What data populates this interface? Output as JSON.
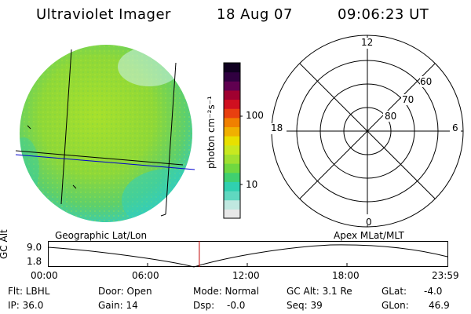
{
  "header": {
    "instrument": "Ultraviolet Imager",
    "date": "18 Aug 07",
    "time": "09:06:23 UT"
  },
  "colorbar": {
    "label": "photon cm⁻²s⁻¹",
    "ticks": [
      "100",
      "10"
    ],
    "scale": "log",
    "colors": [
      "#e8e8e8",
      "#c0e8e0",
      "#60d8c0",
      "#30d0b0",
      "#40d070",
      "#70d840",
      "#a0e030",
      "#c8e820",
      "#e8e000",
      "#f0b000",
      "#f08000",
      "#e84010",
      "#d01020",
      "#a00030",
      "#600050",
      "#300040",
      "#100020"
    ]
  },
  "polar_plot": {
    "mlt_labels": [
      "12",
      "18",
      "6",
      "0"
    ],
    "lat_labels": [
      "60",
      "70",
      "80"
    ]
  },
  "timeline": {
    "ylabel": "GC Alt",
    "ytick_top": "9.0",
    "ytick_bottom": "1.8",
    "left_title": "Geographic Lat/Lon",
    "right_title": "Apex MLat/MLT",
    "xticks": [
      "00:00",
      "06:00",
      "12:00",
      "18:00",
      "23:59"
    ],
    "current_time_fraction": 0.379,
    "marker_color": "#c00000"
  },
  "info": {
    "flt": "Flt: LBHL",
    "ip": "IP: 36.0",
    "door": "Door: Open",
    "gain": "Gain: 14",
    "mode": "Mode: Normal",
    "dsp": "Dsp:",
    "dsp_value": "-0.0",
    "gc_alt": "GC Alt: 3.1 Re",
    "seq": "Seq: 39",
    "glat": "GLat:",
    "glat_value": "-4.0",
    "glon": "GLon:",
    "glon_value": "46.9"
  }
}
